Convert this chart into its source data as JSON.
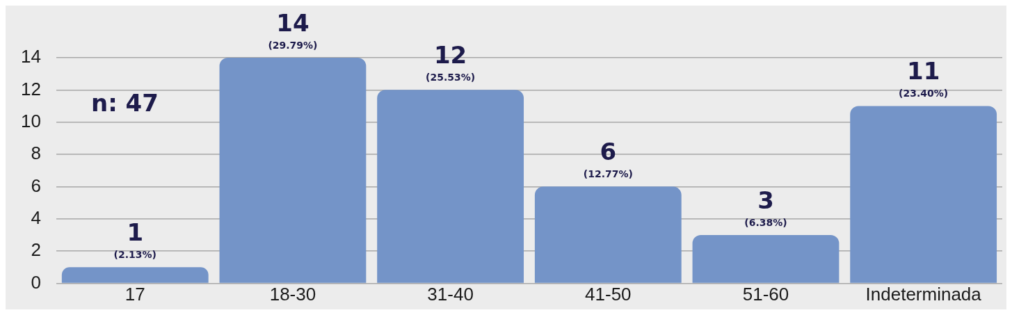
{
  "chart_data": {
    "type": "bar",
    "categories": [
      "17",
      "18-30",
      "31-40",
      "41-50",
      "51-60",
      "Indeterminada"
    ],
    "values": [
      1,
      14,
      12,
      6,
      3,
      11
    ],
    "color": "#7494c8",
    "ylim": [
      0,
      14
    ],
    "yticks": [
      0,
      2,
      4,
      6,
      8,
      10,
      12,
      14
    ],
    "grid": "y",
    "legend": false,
    "data_labels": true,
    "annotations": [
      {
        "text": "(2.13%)",
        "x": "17",
        "y": 1
      },
      {
        "text": "(29.79%)",
        "x": "18-30",
        "y": 14
      },
      {
        "text": "(25.53%)",
        "x": "31-40",
        "y": 12
      },
      {
        "text": "(12.77%)",
        "x": "41-50",
        "y": 6
      },
      {
        "text": "(6.38%)",
        "x": "51-60",
        "y": 3
      },
      {
        "text": "(23.40%)",
        "x": "Indeterminada",
        "y": 11
      },
      "n: 47"
    ]
  }
}
